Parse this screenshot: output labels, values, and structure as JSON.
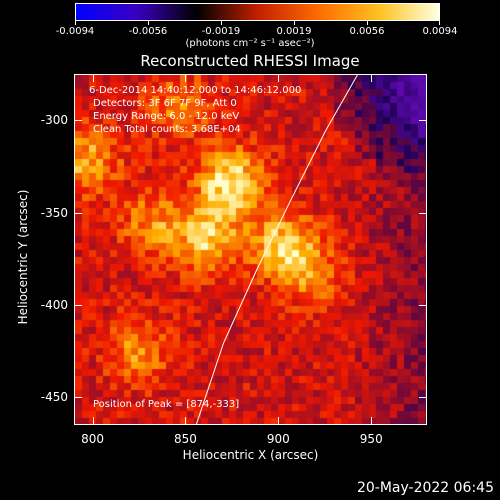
{
  "colorbar": {
    "ticks": [
      "-0.0094",
      "-0.0056",
      "-0.0019",
      "0.0019",
      "0.0056",
      "0.0094"
    ],
    "unit": "(photons cm⁻² s⁻¹ asec⁻²)",
    "colors": [
      "#0000ff",
      "#3a00c0",
      "#000000",
      "#c21f00",
      "#ff6a00",
      "#ffc020",
      "#ffffe0"
    ]
  },
  "title": "Reconstructed RHESSI Image",
  "info": {
    "line1": "6-Dec-2014 14:40:12.000 to 14:46:12.000",
    "line2": "Detectors: 3F 6F 7F 9F, Att 0",
    "line3": "Energy Range: 6.0 - 12.0 keV",
    "line4": "Clean     Total counts: 3.68E+04",
    "peak": "Position of Peak = [874,-333]"
  },
  "chart_data": {
    "type": "heatmap",
    "xlabel": "Heliocentric X (arcsec)",
    "ylabel": "Heliocentric Y (arcsec)",
    "xlim": [
      790,
      980
    ],
    "ylim": [
      -465,
      -275
    ],
    "x_ticks": [
      "800",
      "850",
      "900",
      "950"
    ],
    "y_ticks": [
      "-300",
      "-350",
      "-400",
      "-450"
    ],
    "x_tick_values": [
      800,
      850,
      900,
      950
    ],
    "y_tick_values": [
      -300,
      -350,
      -400,
      -450
    ],
    "peak": [
      874,
      -333
    ],
    "sources": [
      {
        "x": 874,
        "y": -333,
        "value": 1.0
      },
      {
        "x": 903,
        "y": -368,
        "value": 0.85
      },
      {
        "x": 862,
        "y": -365,
        "value": 0.8
      },
      {
        "x": 796,
        "y": -322,
        "value": 0.7
      },
      {
        "x": 832,
        "y": -356,
        "value": 0.55
      },
      {
        "x": 824,
        "y": -425,
        "value": 0.55
      },
      {
        "x": 845,
        "y": -292,
        "value": 0.5
      },
      {
        "x": 920,
        "y": -385,
        "value": 0.45
      }
    ],
    "limb": [
      [
        855,
        -465
      ],
      [
        870,
        -420
      ],
      [
        888,
        -380
      ],
      [
        905,
        -345
      ],
      [
        925,
        -305
      ],
      [
        942,
        -275
      ]
    ]
  },
  "footer": "20-May-2022 06:45"
}
